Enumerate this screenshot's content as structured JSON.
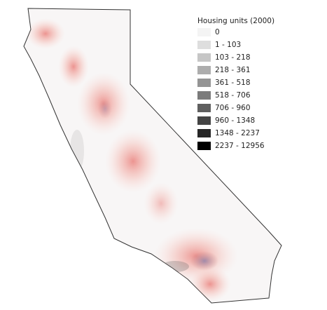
{
  "legend": {
    "title": "Housing units (2000)",
    "items": [
      {
        "label": "0",
        "color": "#f4f4f4"
      },
      {
        "label": "1 - 103",
        "color": "#dedede"
      },
      {
        "label": "103 - 218",
        "color": "#c6c6c6"
      },
      {
        "label": "218 - 361",
        "color": "#adadad"
      },
      {
        "label": "361 - 518",
        "color": "#949494"
      },
      {
        "label": "518 - 706",
        "color": "#7b7b7b"
      },
      {
        "label": "706 - 960",
        "color": "#5f5f5f"
      },
      {
        "label": "960 - 1348",
        "color": "#444444"
      },
      {
        "label": "1348 - 2237",
        "color": "#262626"
      },
      {
        "label": "2237 - 12956",
        "color": "#000000"
      }
    ]
  }
}
